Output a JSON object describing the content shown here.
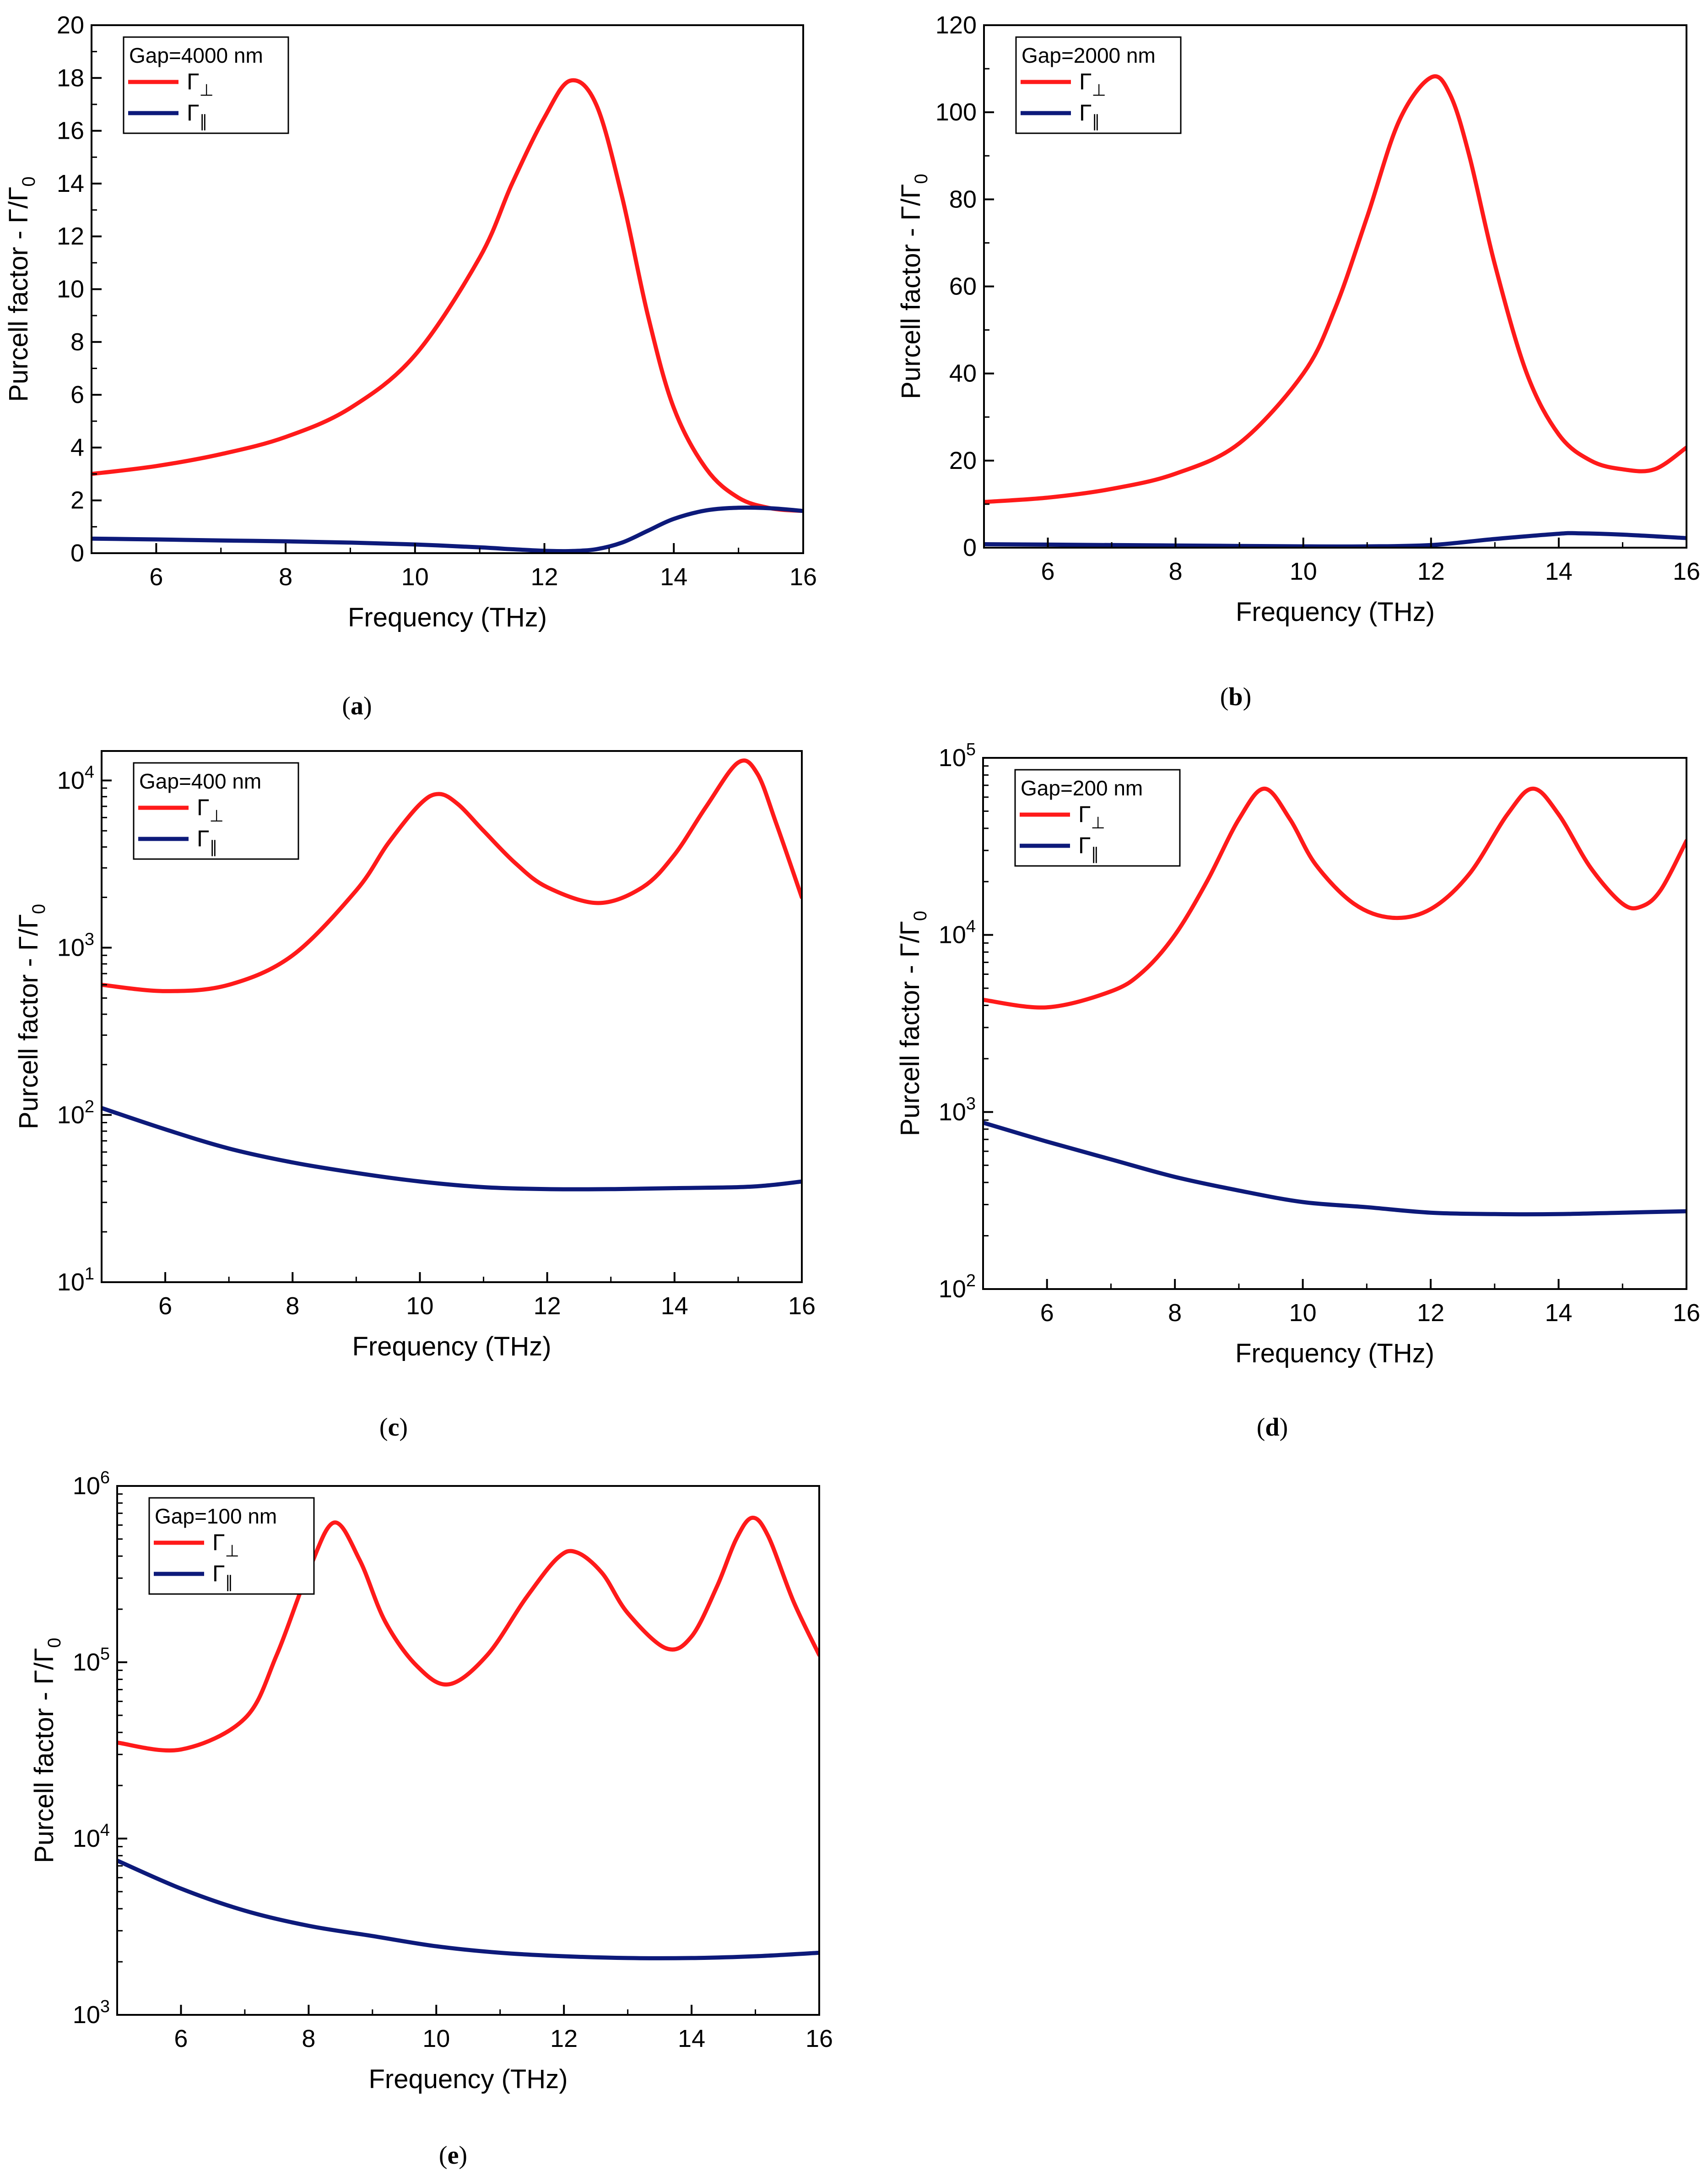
{
  "chart_data": [
    {
      "panel": "(a)",
      "type": "line",
      "xlabel": "Frequency (THz)",
      "ylabel": "Purcell factor - Γ/Γ",
      "ylabel_sub": "0",
      "yscale": "linear",
      "xlim": [
        5,
        16
      ],
      "ylim": [
        0,
        20
      ],
      "xticks": [
        6,
        8,
        10,
        12,
        14,
        16
      ],
      "xtick_labels": [
        "6",
        "8",
        "10",
        "12",
        "14",
        "16"
      ],
      "yticks": [
        0,
        2,
        4,
        6,
        8,
        10,
        12,
        14,
        16,
        18,
        20
      ],
      "ytick_labels": [
        "0",
        "2",
        "4",
        "6",
        "8",
        "10",
        "12",
        "14",
        "16",
        "18",
        "20"
      ],
      "legend": {
        "title": "Gap=4000 nm",
        "placement": "top-left"
      },
      "series": [
        {
          "name": "Γ",
          "sub": "⊥",
          "color": "#ff1a1a",
          "x": [
            5,
            6,
            7,
            8,
            9,
            10,
            11,
            11.5,
            12,
            12.4,
            12.8,
            13.2,
            13.6,
            14,
            14.5,
            15,
            15.5,
            16
          ],
          "y": [
            3.0,
            3.3,
            3.75,
            4.4,
            5.5,
            7.5,
            11.2,
            14.0,
            16.5,
            17.9,
            17.0,
            13.5,
            9.0,
            5.5,
            3.2,
            2.1,
            1.7,
            1.6
          ]
        },
        {
          "name": "Γ",
          "sub": "∥",
          "color": "#0d1a7a",
          "x": [
            5,
            6,
            7,
            8,
            9,
            10,
            11,
            11.5,
            12,
            12.4,
            12.8,
            13.2,
            13.6,
            14,
            14.5,
            15,
            15.5,
            16
          ],
          "y": [
            0.55,
            0.52,
            0.48,
            0.45,
            0.4,
            0.33,
            0.22,
            0.15,
            0.09,
            0.08,
            0.15,
            0.4,
            0.85,
            1.3,
            1.62,
            1.72,
            1.7,
            1.6
          ]
        }
      ]
    },
    {
      "panel": "(b)",
      "type": "line",
      "xlabel": "Frequency (THz)",
      "ylabel": "Purcell factor - Γ/Γ",
      "ylabel_sub": "0",
      "yscale": "linear",
      "xlim": [
        5,
        16
      ],
      "ylim": [
        0,
        120
      ],
      "xticks": [
        6,
        8,
        10,
        12,
        14,
        16
      ],
      "xtick_labels": [
        "6",
        "8",
        "10",
        "12",
        "14",
        "16"
      ],
      "yticks": [
        0,
        20,
        40,
        60,
        80,
        100,
        120
      ],
      "ytick_labels": [
        "0",
        "20",
        "40",
        "60",
        "80",
        "100",
        "120"
      ],
      "legend": {
        "title": "Gap=2000 nm",
        "placement": "top-left"
      },
      "series": [
        {
          "name": "Γ",
          "sub": "⊥",
          "color": "#ff1a1a",
          "x": [
            5,
            6,
            7,
            8,
            9,
            10,
            10.5,
            11,
            11.5,
            12,
            12.3,
            12.6,
            13,
            13.5,
            14,
            14.5,
            15,
            15.5,
            16
          ],
          "y": [
            10.5,
            11.5,
            13.5,
            17,
            24,
            40,
            55,
            76,
            98,
            108,
            104,
            90,
            65,
            40,
            26,
            20,
            18,
            18,
            23
          ]
        },
        {
          "name": "Γ",
          "sub": "∥",
          "color": "#0d1a7a",
          "x": [
            5,
            6,
            7,
            8,
            9,
            10,
            11,
            12,
            13,
            14,
            14.3,
            15,
            16
          ],
          "y": [
            0.8,
            0.7,
            0.6,
            0.5,
            0.4,
            0.3,
            0.3,
            0.6,
            2.0,
            3.2,
            3.3,
            3.0,
            2.2
          ]
        }
      ]
    },
    {
      "panel": "(c)",
      "type": "line",
      "xlabel": "Frequency (THz)",
      "ylabel": "Purcell factor - Γ/Γ",
      "ylabel_sub": "0",
      "yscale": "log",
      "xlim": [
        5,
        16
      ],
      "ylim": [
        10,
        15000
      ],
      "xticks": [
        6,
        8,
        10,
        12,
        14,
        16
      ],
      "xtick_labels": [
        "6",
        "8",
        "10",
        "12",
        "14",
        "16"
      ],
      "yticks": [
        10,
        100,
        1000,
        10000
      ],
      "ytick_labels": [
        [
          "10",
          "1"
        ],
        [
          "10",
          "2"
        ],
        [
          "10",
          "3"
        ],
        [
          "10",
          "4"
        ]
      ],
      "legend": {
        "title": "Gap=400 nm",
        "placement": "top-left"
      },
      "series": [
        {
          "name": "Γ",
          "sub": "⊥",
          "color": "#ff1a1a",
          "x": [
            5,
            6,
            7,
            8,
            9,
            9.5,
            10,
            10.3,
            10.6,
            11,
            11.5,
            12,
            12.8,
            13.5,
            14,
            14.5,
            15,
            15.3,
            15.6,
            16
          ],
          "y": [
            600,
            550,
            600,
            900,
            2200,
            4200,
            7200,
            8300,
            7200,
            5000,
            3200,
            2300,
            1850,
            2300,
            3600,
            7000,
            12800,
            11000,
            5500,
            2000
          ]
        },
        {
          "name": "Γ",
          "sub": "∥",
          "color": "#0d1a7a",
          "x": [
            5,
            6,
            7,
            8,
            9,
            10,
            11,
            12,
            13,
            14,
            15,
            15.5,
            16
          ],
          "y": [
            110,
            82,
            63,
            52,
            45,
            40,
            37,
            36,
            36,
            36.5,
            37,
            38,
            40
          ]
        }
      ]
    },
    {
      "panel": "(d)",
      "type": "line",
      "xlabel": "Frequency (THz)",
      "ylabel": "Purcell factor - Γ/Γ",
      "ylabel_sub": "0",
      "yscale": "log",
      "xlim": [
        5,
        16
      ],
      "ylim": [
        100,
        100000
      ],
      "xticks": [
        6,
        8,
        10,
        12,
        14,
        16
      ],
      "xtick_labels": [
        "6",
        "8",
        "10",
        "12",
        "14",
        "16"
      ],
      "yticks": [
        100,
        1000,
        10000,
        100000
      ],
      "ytick_labels": [
        [
          "10",
          "2"
        ],
        [
          "10",
          "3"
        ],
        [
          "10",
          "4"
        ],
        [
          "10",
          "5"
        ]
      ],
      "legend": {
        "title": "Gap=200 nm",
        "placement": "top-left"
      },
      "series": [
        {
          "name": "Γ",
          "sub": "⊥",
          "color": "#ff1a1a",
          "x": [
            5,
            6,
            7,
            7.5,
            8,
            8.5,
            9,
            9.4,
            9.8,
            10.2,
            10.8,
            11.4,
            12,
            12.6,
            13.2,
            13.6,
            14,
            14.5,
            15,
            15.3,
            15.6,
            16
          ],
          "y": [
            4300,
            3900,
            4800,
            6200,
            10000,
            20000,
            45000,
            67000,
            45000,
            25000,
            15000,
            12500,
            14000,
            22000,
            48000,
            67000,
            48000,
            24000,
            15000,
            14500,
            18000,
            34000
          ]
        },
        {
          "name": "Γ",
          "sub": "∥",
          "color": "#0d1a7a",
          "x": [
            5,
            6,
            7,
            8,
            9,
            10,
            11,
            12,
            13,
            14,
            15,
            16
          ],
          "y": [
            870,
            680,
            540,
            430,
            360,
            310,
            290,
            270,
            265,
            265,
            270,
            275
          ]
        }
      ]
    },
    {
      "panel": "(e)",
      "type": "line",
      "xlabel": "Frequency (THz)",
      "ylabel": "Purcell factor - Γ/Γ",
      "ylabel_sub": "0",
      "yscale": "log",
      "xlim": [
        5,
        16
      ],
      "ylim": [
        1000,
        1000000
      ],
      "xticks": [
        6,
        8,
        10,
        12,
        14,
        16
      ],
      "xtick_labels": [
        "6",
        "8",
        "10",
        "12",
        "14",
        "16"
      ],
      "yticks": [
        1000,
        10000,
        100000,
        1000000
      ],
      "ytick_labels": [
        [
          "10",
          "3"
        ],
        [
          "10",
          "4"
        ],
        [
          "10",
          "5"
        ],
        [
          "10",
          "6"
        ]
      ],
      "legend": {
        "title": "Gap=100 nm",
        "placement": "top-left"
      },
      "series": [
        {
          "name": "Γ",
          "sub": "⊥",
          "color": "#ff1a1a",
          "x": [
            5,
            6,
            7,
            7.5,
            8,
            8.4,
            8.8,
            9.2,
            9.7,
            10.2,
            10.8,
            11.4,
            11.9,
            12.2,
            12.6,
            13,
            13.6,
            14,
            14.4,
            14.7,
            14.95,
            15.2,
            15.6,
            16
          ],
          "y": [
            35000,
            32000,
            48000,
            110000,
            330000,
            620000,
            380000,
            170000,
            95000,
            75000,
            110000,
            230000,
            390000,
            420000,
            320000,
            190000,
            120000,
            140000,
            270000,
            500000,
            660000,
            520000,
            220000,
            110000
          ]
        },
        {
          "name": "Γ",
          "sub": "∥",
          "color": "#0d1a7a",
          "x": [
            5,
            6,
            7,
            8,
            9,
            10,
            11,
            12,
            13,
            14,
            15,
            16
          ],
          "y": [
            7500,
            5200,
            3900,
            3200,
            2800,
            2450,
            2250,
            2150,
            2100,
            2100,
            2150,
            2250
          ]
        }
      ]
    }
  ]
}
